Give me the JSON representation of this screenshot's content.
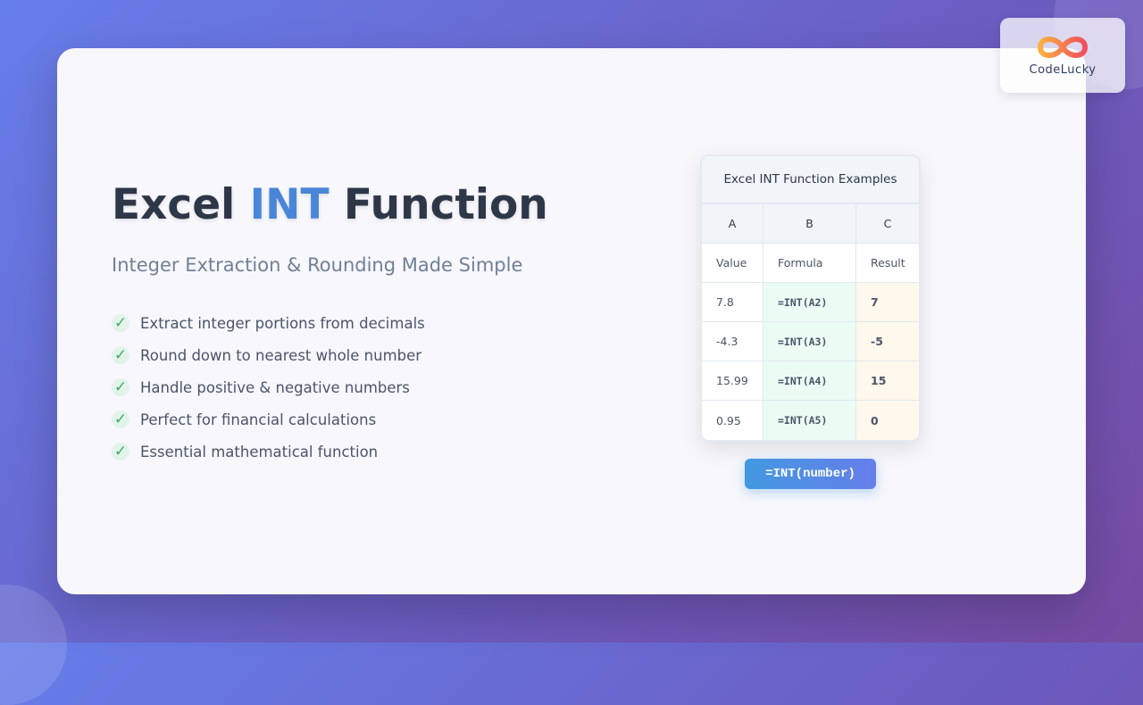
{
  "brand": {
    "name": "CodeLucky",
    "colors": {
      "primary": "#667eea",
      "accent": "#4a86d8",
      "check": "#38b26a"
    }
  },
  "hero": {
    "title_pre": "Excel ",
    "title_accent": "INT",
    "title_post": " Function",
    "subtitle": "Integer Extraction & Rounding Made Simple"
  },
  "features": [
    {
      "icon": "check-icon",
      "text": "Extract integer portions from decimals"
    },
    {
      "icon": "check-icon",
      "text": "Round down to nearest whole number"
    },
    {
      "icon": "check-icon",
      "text": "Handle positive & negative numbers"
    },
    {
      "icon": "check-icon",
      "text": "Perfect for financial calculations"
    },
    {
      "icon": "check-icon",
      "text": "Essential mathematical function"
    }
  ],
  "table": {
    "title": "Excel INT Function Examples",
    "columns": [
      "A",
      "B",
      "C"
    ],
    "header": [
      "Value",
      "Formula",
      "Result"
    ],
    "rows": [
      [
        "7.8",
        "=INT(A2)",
        "7"
      ],
      [
        "-4.3",
        "=INT(A3)",
        "-5"
      ],
      [
        "15.99",
        "=INT(A4)",
        "15"
      ],
      [
        "0.95",
        "=INT(A5)",
        "0"
      ]
    ]
  },
  "syntax": "=INT(number)"
}
